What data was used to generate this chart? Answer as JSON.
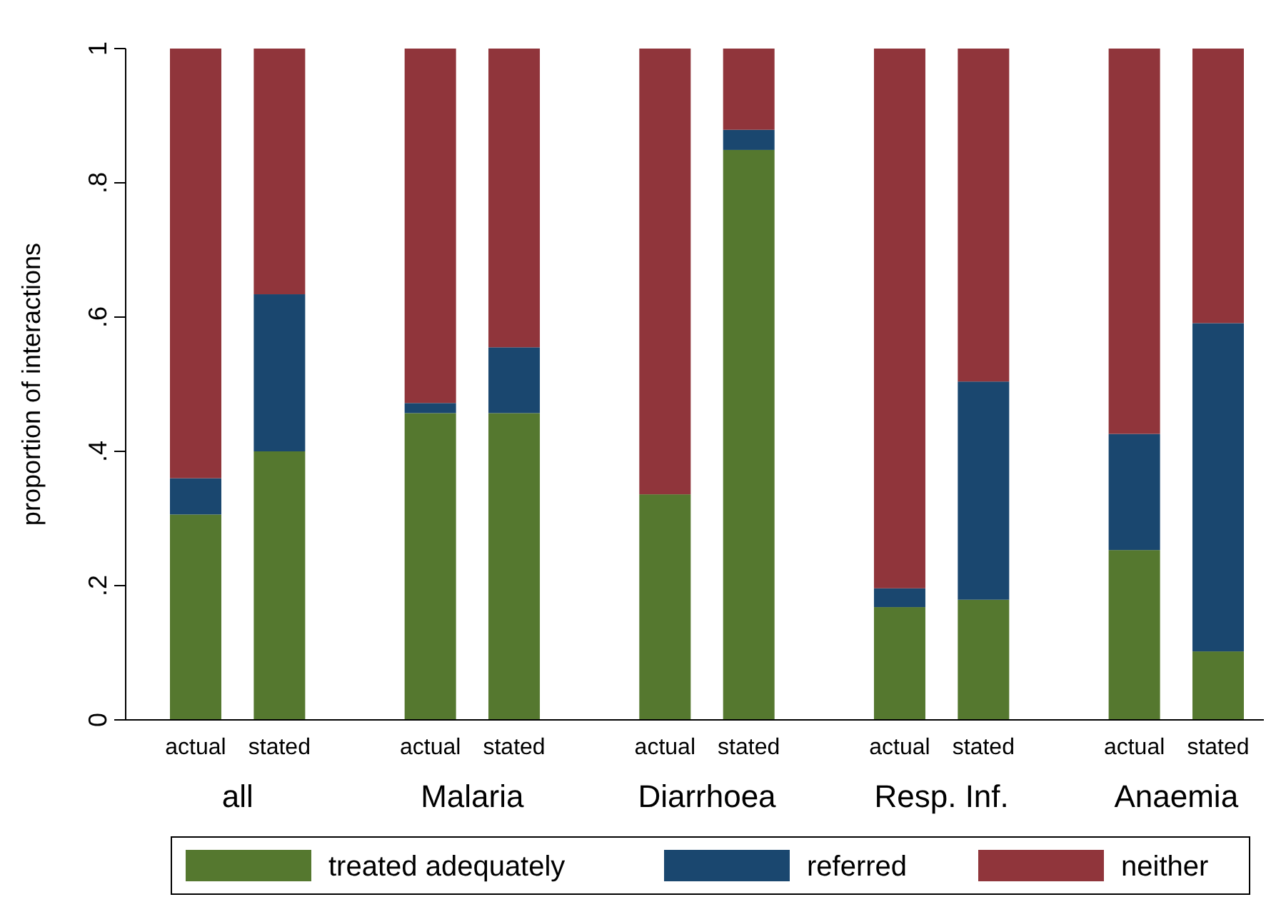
{
  "chart_data": {
    "type": "bar",
    "stacked": true,
    "ylabel": "proportion of interactions",
    "categories": [
      "actual",
      "stated",
      "actual",
      "stated",
      "actual",
      "stated",
      "actual",
      "stated",
      "actual",
      "stated"
    ],
    "annotations": [
      "all",
      "Malaria",
      "Diarrhoea",
      "Resp. Inf.",
      "Anaemia"
    ],
    "series": [
      {
        "name": "treated adequately",
        "color": "#55782f",
        "values": [
          0.306,
          0.4,
          0.457,
          0.457,
          0.336,
          0.849,
          0.168,
          0.179,
          0.253,
          0.102
        ]
      },
      {
        "name": "referred",
        "color": "#1a476f",
        "values": [
          0.054,
          0.234,
          0.015,
          0.098,
          0,
          0.03,
          0.028,
          0.325,
          0.173,
          0.489
        ]
      },
      {
        "name": "neither",
        "color": "#90353b",
        "values": [
          0.64,
          0.366,
          0.528,
          0.445,
          0.664,
          0.121,
          0.804,
          0.496,
          0.574,
          0.409
        ]
      }
    ],
    "ylim": [
      0,
      1
    ],
    "yticks": [
      0,
      {
        "value": 0.2,
        "label": ".2"
      },
      {
        "value": 0.4,
        "label": ".4"
      },
      {
        "value": 0.6,
        "label": ".6"
      },
      {
        "value": 0.8,
        "label": ".8"
      },
      1
    ],
    "legend": "bottom"
  }
}
